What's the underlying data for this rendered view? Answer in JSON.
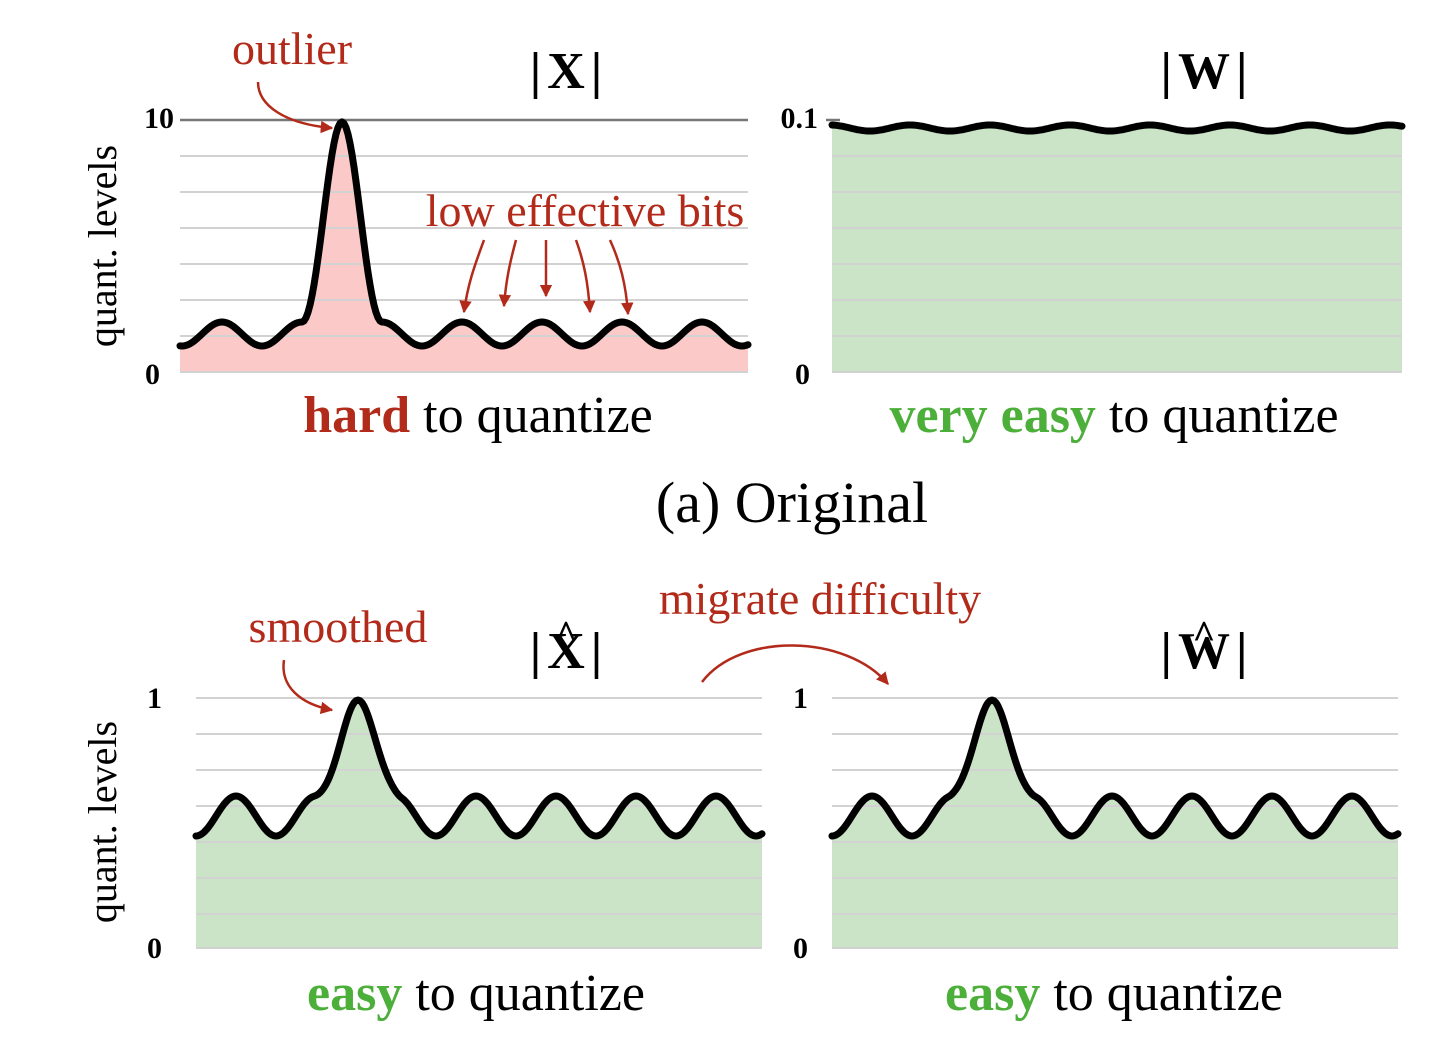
{
  "colors": {
    "red_text": "#b22a1a",
    "green_text": "#4caf3a",
    "red_fill": "#fbc9c7",
    "green_fill": "#cbe4c7",
    "grid": "#d2d2d2",
    "curve": "#000000"
  },
  "y_axis_label": "quant. levels",
  "section_caption": "(a) Original",
  "panels": {
    "x_orig": {
      "title_prefix": "|",
      "title_symbol": "X",
      "title_suffix": "|",
      "y_max": "10",
      "y_min": "0",
      "caption_highlight": "hard",
      "caption_rest": " to quantize",
      "annotation_peak": "outlier",
      "annotation_bumps": "low effective bits"
    },
    "w_orig": {
      "title_prefix": "|",
      "title_symbol": "W",
      "title_suffix": "|",
      "y_max": "0.1",
      "y_min": "0",
      "caption_highlight": "very easy",
      "caption_rest": " to quantize"
    },
    "x_smooth": {
      "title_prefix": "|",
      "title_symbol": "X",
      "title_accent": "^",
      "title_suffix": "|",
      "y_max": "1",
      "y_min": "0",
      "caption_highlight": "easy",
      "caption_rest": " to quantize",
      "annotation_peak": "smoothed"
    },
    "w_smooth": {
      "title_prefix": "|",
      "title_symbol": "W",
      "title_accent": "^",
      "title_suffix": "|",
      "y_max": "1",
      "y_min": "0",
      "caption_highlight": "easy",
      "caption_rest": " to quantize"
    }
  },
  "migrate_label": "migrate difficulty"
}
